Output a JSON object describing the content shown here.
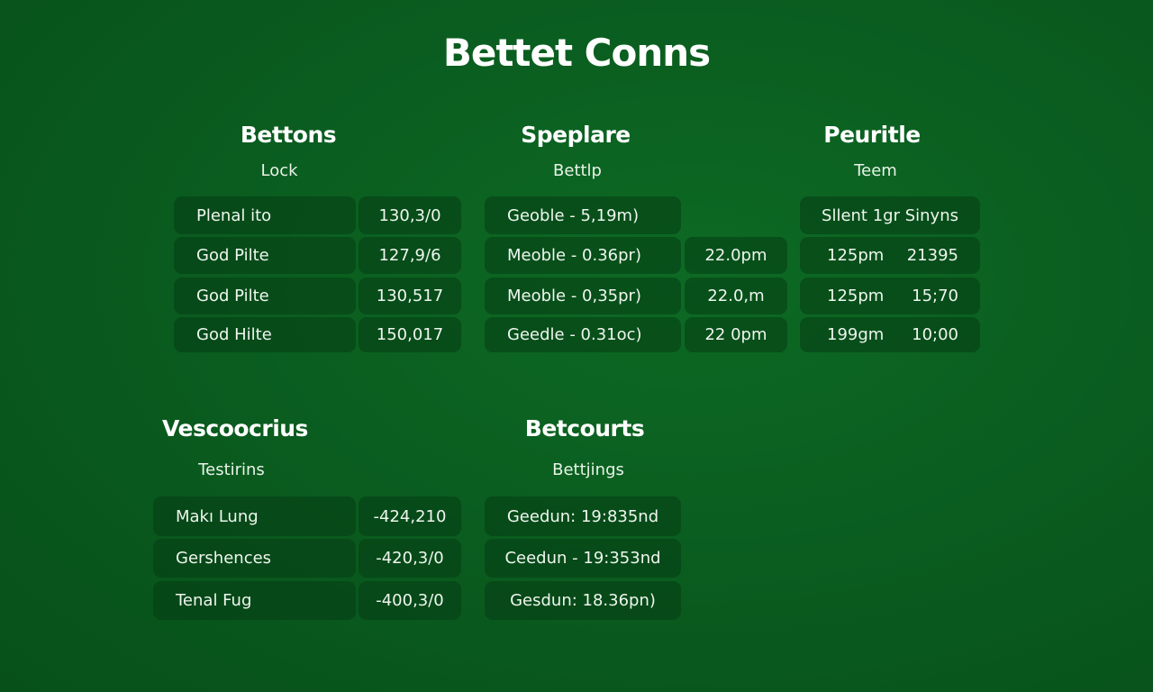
{
  "title": "Bettet Conns",
  "sections": [
    {
      "heading": "Bettons",
      "subheading": "Lock",
      "rows": [
        [
          "Plenal ito",
          "130,3/0"
        ],
        [
          "God Pilte",
          "127,9/6"
        ],
        [
          "God Pilte",
          "130,517"
        ],
        [
          "God Hilte",
          "150,017"
        ]
      ]
    },
    {
      "heading": "Speplare",
      "subheading": "Bettlp",
      "rows": [
        [
          "Geoble - 5,19m)",
          ""
        ],
        [
          "Meoble - 0.36pr)",
          "22.0pm"
        ],
        [
          "Meoble - 0,35pr)",
          "22.0,m"
        ],
        [
          "Geedle - 0.31oc)",
          "22 0pm"
        ]
      ]
    },
    {
      "heading": "Peuritle",
      "subheading": "Teem",
      "rows": [
        [
          "Sllent 1gr Sinyns",
          ""
        ],
        [
          "125pm",
          "21395"
        ],
        [
          "125pm",
          "15;70"
        ],
        [
          "199gm",
          "10;00"
        ]
      ]
    },
    {
      "heading": "Vescoocrius",
      "subheading": "Testirins",
      "rows": [
        [
          "Makı Lung",
          "-424,210"
        ],
        [
          "Gershences",
          "-420,3/0"
        ],
        [
          "Tenal Fug",
          "-400,3/0"
        ]
      ]
    },
    {
      "heading": "Betcourts",
      "subheading": "Bettjings",
      "rows": [
        [
          "Geedun: 19:835nd"
        ],
        [
          "Ceedun - 19:353nd"
        ],
        [
          "Gesdun: 18.36pn)"
        ]
      ]
    }
  ]
}
